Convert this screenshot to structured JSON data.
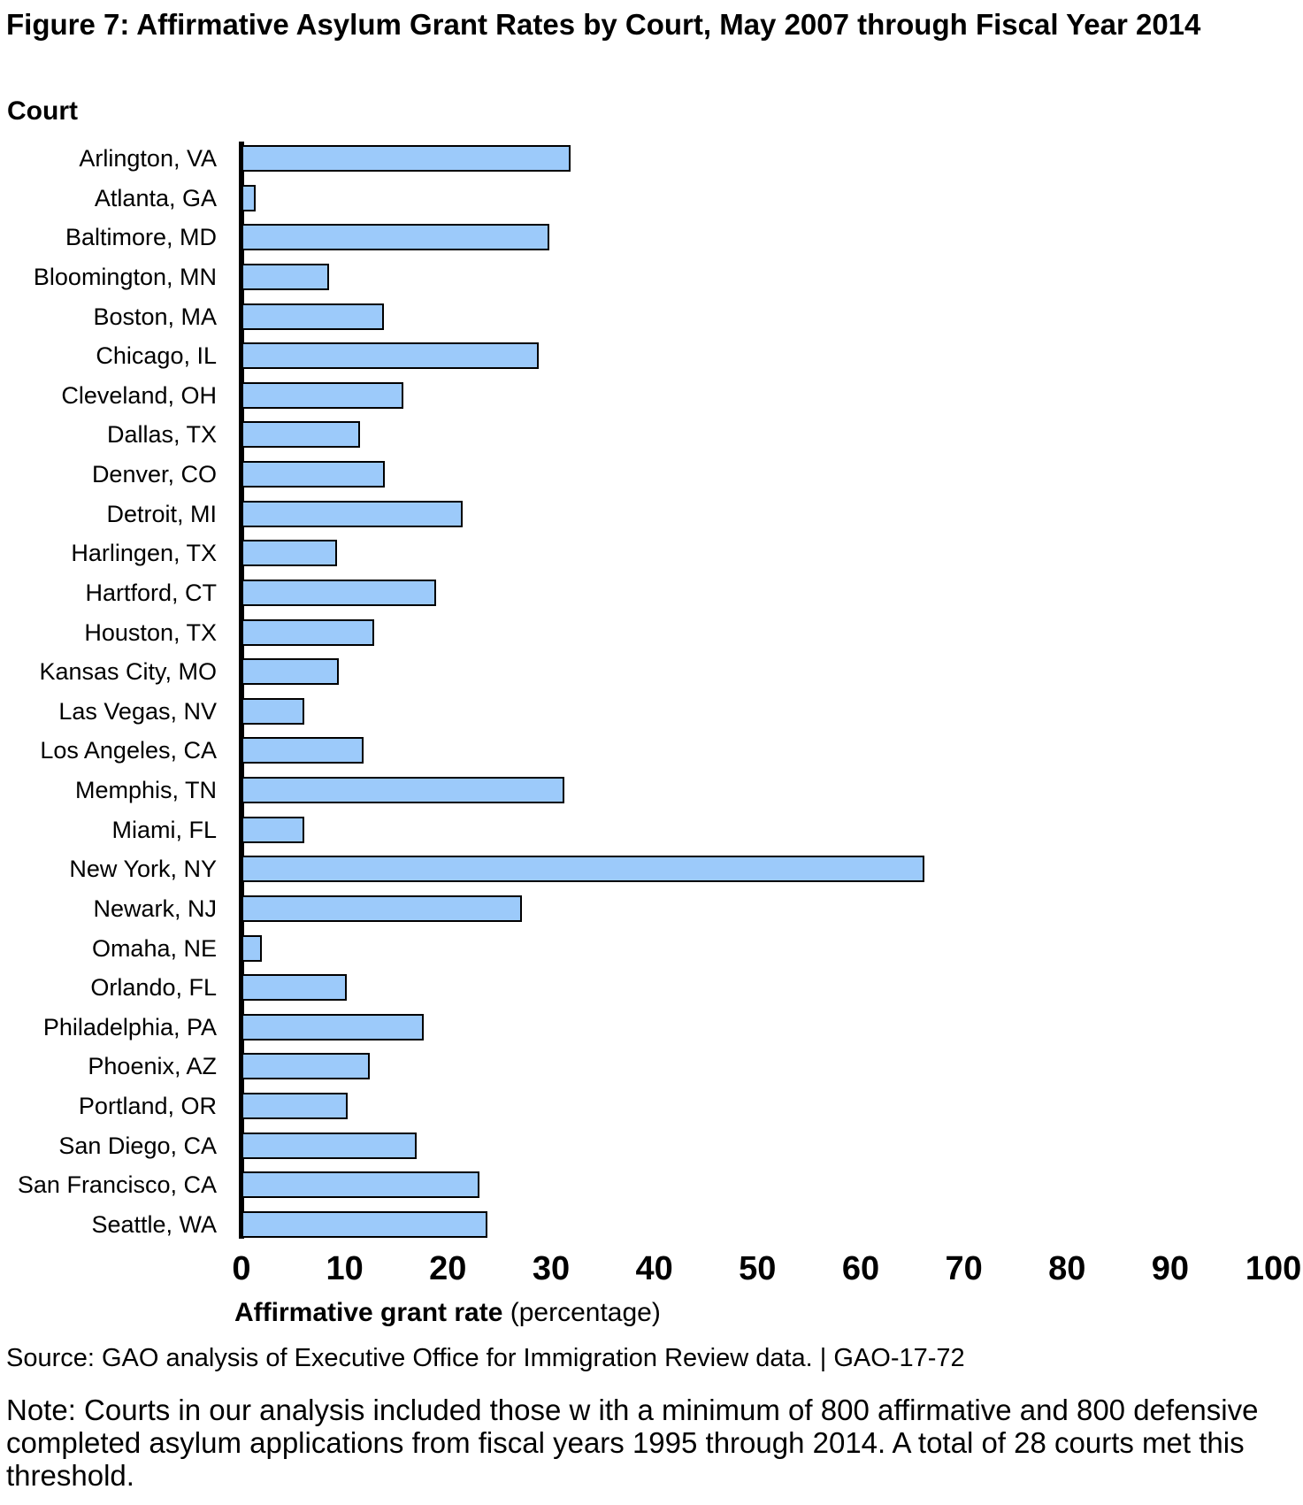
{
  "figure": {
    "title": "Figure 7: Affirmative Asylum Grant Rates by Court, May 2007 through Fiscal Year 2014",
    "y_axis_heading": "Court",
    "x_axis_label_bold": "Affirmative grant rate",
    "x_axis_label_regular": " (percentage)",
    "source_line": "Source: GAO analysis of Executive Office for Immigration Review data.  |  GAO-17-72",
    "note": "Note: Courts in our analysis included those w ith a minimum of 800 affirmative and 800 defensive completed asylum applications from fiscal years 1995 through 2014. A total of 28 courts met this threshold."
  },
  "colors": {
    "bar_fill": "#9CCAFA",
    "bar_border": "#000000",
    "axis": "#000000",
    "text": "#000000",
    "background": "#ffffff"
  },
  "chart_data": {
    "type": "bar",
    "orientation": "horizontal",
    "title": "Figure 7: Affirmative Asylum Grant Rates by Court, May 2007 through Fiscal Year 2014",
    "xlabel": "Affirmative grant rate (percentage)",
    "ylabel": "Court",
    "xlim": [
      0,
      100
    ],
    "xticks": [
      0,
      10,
      20,
      30,
      40,
      50,
      60,
      70,
      80,
      90,
      100
    ],
    "grid": false,
    "legend": false,
    "categories": [
      "Arlington, VA",
      "Atlanta, GA",
      "Baltimore, MD",
      "Bloomington, MN",
      "Boston, MA",
      "Chicago, IL",
      "Cleveland, OH",
      "Dallas, TX",
      "Denver, CO",
      "Detroit, MI",
      "Harlingen, TX",
      "Hartford, CT",
      "Houston, TX",
      "Kansas City, MO",
      "Las Vegas, NV",
      "Los Angeles, CA",
      "Memphis, TN",
      "Miami, FL",
      "New York, NY",
      "Newark, NJ",
      "Omaha, NE",
      "Orlando, FL",
      "Philadelphia, PA",
      "Phoenix, AZ",
      "Portland, OR",
      "San Diego, CA",
      "San Francisco, CA",
      "Seattle, WA"
    ],
    "values": [
      31.9,
      1.4,
      29.8,
      8.5,
      13.8,
      28.8,
      15.7,
      11.5,
      13.9,
      21.4,
      9.3,
      18.9,
      12.9,
      9.4,
      6.1,
      11.8,
      31.3,
      6.1,
      66.2,
      27.2,
      2.0,
      10.2,
      17.7,
      12.4,
      10.3,
      17.0,
      23.1,
      23.8
    ]
  }
}
